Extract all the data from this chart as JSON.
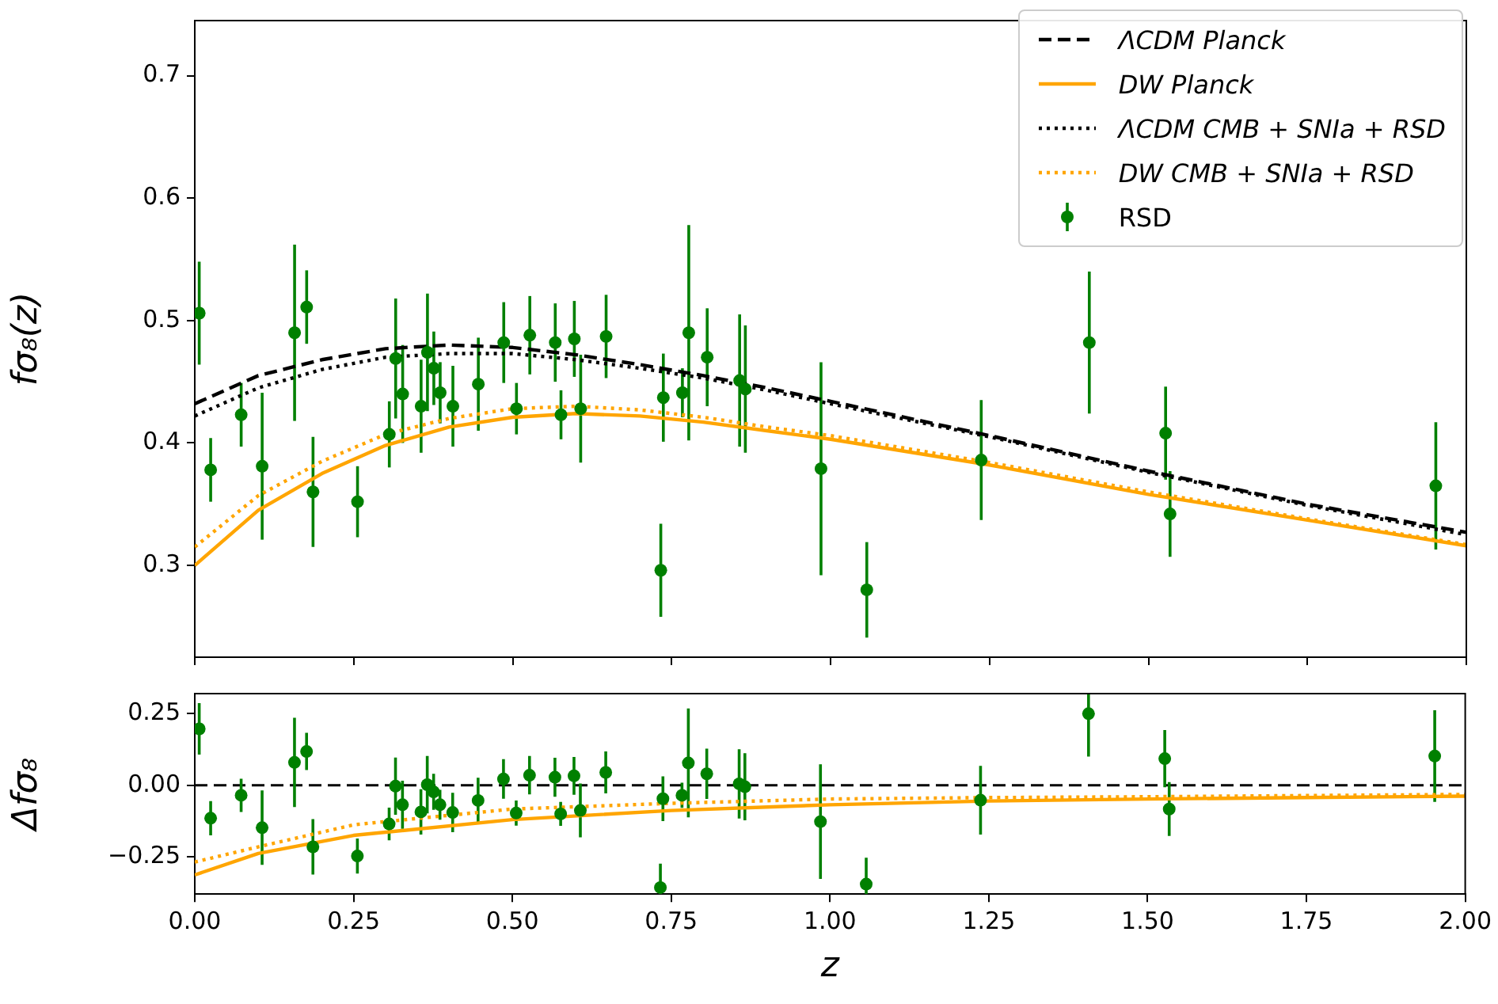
{
  "chart_data": [
    {
      "type": "line",
      "ylabel": "fσ₈(z)",
      "xlim": [
        0,
        2
      ],
      "ylim": [
        0.225,
        0.745
      ],
      "xticks": [
        0,
        0.25,
        0.5,
        0.75,
        1,
        1.25,
        1.5,
        1.75,
        2
      ],
      "yticks": [
        0.3,
        0.4,
        0.5,
        0.6,
        0.7
      ],
      "tick_labels": "y",
      "grid": false,
      "legend": "top right",
      "series": [
        {
          "name": "ΛCDM Planck",
          "color": "#000000",
          "line_style": "dashed",
          "x": [
            0,
            0.1,
            0.2,
            0.3,
            0.4,
            0.5,
            0.6,
            0.7,
            0.8,
            0.9,
            1,
            1.25,
            1.5,
            1.75,
            2
          ],
          "values": [
            0.432,
            0.455,
            0.468,
            0.477,
            0.48,
            0.478,
            0.472,
            0.464,
            0.455,
            0.445,
            0.434,
            0.406,
            0.377,
            0.35,
            0.327
          ]
        },
        {
          "name": "DW Planck",
          "color": "#ffa500",
          "line_style": "solid",
          "x": [
            0,
            0.1,
            0.2,
            0.3,
            0.4,
            0.5,
            0.6,
            0.7,
            0.8,
            0.9,
            1,
            1.25,
            1.5,
            1.75,
            2
          ],
          "values": [
            0.3,
            0.345,
            0.375,
            0.398,
            0.413,
            0.421,
            0.424,
            0.422,
            0.417,
            0.41,
            0.403,
            0.382,
            0.358,
            0.337,
            0.316
          ]
        },
        {
          "name": "ΛCDM CMB + SNIa + RSD",
          "color": "#000000",
          "line_style": "dotted",
          "x": [
            0,
            0.1,
            0.2,
            0.3,
            0.4,
            0.5,
            0.6,
            0.7,
            0.8,
            0.9,
            1,
            1.25,
            1.5,
            1.75,
            2
          ],
          "values": [
            0.422,
            0.445,
            0.46,
            0.47,
            0.473,
            0.473,
            0.468,
            0.461,
            0.453,
            0.443,
            0.432,
            0.405,
            0.376,
            0.349,
            0.325
          ]
        },
        {
          "name": "DW CMB + SNIa + RSD",
          "color": "#ffa500",
          "line_style": "dotted",
          "x": [
            0,
            0.1,
            0.2,
            0.3,
            0.4,
            0.5,
            0.6,
            0.7,
            0.8,
            0.9,
            1,
            1.25,
            1.5,
            1.75,
            2
          ],
          "values": [
            0.315,
            0.357,
            0.385,
            0.407,
            0.42,
            0.428,
            0.43,
            0.427,
            0.421,
            0.413,
            0.406,
            0.384,
            0.36,
            0.338,
            0.317
          ]
        },
        {
          "name": "RSD",
          "type": "scatter",
          "color": "#008000",
          "marker": "circle",
          "x": [
            0.007,
            0.025,
            0.073,
            0.106,
            0.157,
            0.176,
            0.186,
            0.256,
            0.306,
            0.316,
            0.327,
            0.356,
            0.366,
            0.376,
            0.386,
            0.406,
            0.446,
            0.486,
            0.506,
            0.527,
            0.567,
            0.576,
            0.597,
            0.607,
            0.647,
            0.733,
            0.737,
            0.767,
            0.777,
            0.806,
            0.857,
            0.866,
            0.985,
            1.057,
            1.237,
            1.407,
            1.527,
            1.534,
            1.952
          ],
          "values": [
            0.506,
            0.378,
            0.423,
            0.381,
            0.49,
            0.511,
            0.36,
            0.352,
            0.407,
            0.469,
            0.44,
            0.43,
            0.474,
            0.461,
            0.441,
            0.43,
            0.448,
            0.482,
            0.428,
            0.488,
            0.482,
            0.423,
            0.485,
            0.428,
            0.487,
            0.296,
            0.437,
            0.441,
            0.49,
            0.47,
            0.451,
            0.444,
            0.379,
            0.28,
            0.386,
            0.482,
            0.408,
            0.342,
            0.365
          ],
          "errors": [
            0.042,
            0.026,
            0.026,
            0.06,
            0.072,
            0.03,
            0.045,
            0.029,
            0.027,
            0.049,
            0.04,
            0.038,
            0.048,
            0.03,
            0.025,
            0.033,
            0.038,
            0.033,
            0.021,
            0.032,
            0.032,
            0.02,
            0.031,
            0.044,
            0.034,
            0.038,
            0.036,
            0.02,
            0.088,
            0.04,
            0.054,
            0.052,
            0.087,
            0.039,
            0.049,
            0.058,
            0.038,
            0.035,
            0.052
          ]
        }
      ]
    },
    {
      "type": "line",
      "xlabel": "z",
      "ylabel": "Δfσ₈",
      "xlim": [
        0,
        2
      ],
      "ylim": [
        -0.38,
        0.32
      ],
      "xticks": [
        {
          "value": 0,
          "label": "0.00"
        },
        {
          "value": 0.25,
          "label": "0.25"
        },
        {
          "value": 0.5,
          "label": "0.50"
        },
        {
          "value": 0.75,
          "label": "0.75"
        },
        {
          "value": 1,
          "label": "1.00"
        },
        {
          "value": 1.25,
          "label": "1.25"
        },
        {
          "value": 1.5,
          "label": "1.50"
        },
        {
          "value": 1.75,
          "label": "1.75"
        },
        {
          "value": 2,
          "label": "2.00"
        }
      ],
      "yticks": [
        {
          "value": -0.25,
          "label": "−0.25"
        },
        {
          "value": 0,
          "label": "0.00"
        },
        {
          "value": 0.25,
          "label": "0.25"
        }
      ],
      "grid": false,
      "ref_lines": [
        {
          "axis": "y",
          "value": 0,
          "color": "#000000",
          "line_style": "dashed"
        }
      ],
      "series": [
        {
          "color": "#ffa500",
          "line_style": "solid",
          "x": [
            0,
            0.1,
            0.25,
            0.5,
            0.75,
            1,
            1.25,
            1.5,
            1.75,
            2
          ],
          "values": [
            -0.313,
            -0.238,
            -0.175,
            -0.12,
            -0.088,
            -0.068,
            -0.055,
            -0.048,
            -0.043,
            -0.038
          ]
        },
        {
          "color": "#ffa500",
          "line_style": "dotted",
          "x": [
            0,
            0.1,
            0.25,
            0.5,
            0.75,
            1,
            1.25,
            1.5,
            1.75,
            2
          ],
          "values": [
            -0.268,
            -0.215,
            -0.138,
            -0.083,
            -0.063,
            -0.048,
            -0.043,
            -0.04,
            -0.036,
            -0.032
          ]
        },
        {
          "type": "scatter",
          "color": "#008000",
          "marker": "circle",
          "x": [
            0.007,
            0.025,
            0.073,
            0.106,
            0.157,
            0.176,
            0.186,
            0.256,
            0.306,
            0.316,
            0.327,
            0.356,
            0.366,
            0.376,
            0.386,
            0.406,
            0.446,
            0.486,
            0.506,
            0.527,
            0.567,
            0.576,
            0.597,
            0.607,
            0.647,
            0.733,
            0.737,
            0.767,
            0.777,
            0.806,
            0.857,
            0.866,
            0.985,
            1.057,
            1.237,
            1.407,
            1.527,
            1.534,
            1.952
          ],
          "values": [
            0.197,
            -0.115,
            -0.035,
            -0.148,
            0.08,
            0.118,
            -0.215,
            -0.247,
            -0.135,
            -0.003,
            -0.068,
            -0.093,
            0.002,
            -0.023,
            -0.068,
            -0.095,
            -0.053,
            0.022,
            -0.097,
            0.035,
            0.028,
            -0.1,
            0.033,
            -0.088,
            0.045,
            -0.357,
            -0.047,
            -0.035,
            0.078,
            0.04,
            0.005,
            -0.005,
            -0.127,
            -0.345,
            -0.052,
            0.25,
            0.093,
            -0.083,
            0.102
          ],
          "errors": [
            0.09,
            0.06,
            0.058,
            0.13,
            0.156,
            0.065,
            0.097,
            0.061,
            0.057,
            0.1,
            0.084,
            0.079,
            0.1,
            0.063,
            0.052,
            0.069,
            0.079,
            0.069,
            0.044,
            0.067,
            0.068,
            0.042,
            0.066,
            0.094,
            0.073,
            [
              -0.38,
              -0.274
            ],
            0.078,
            0.044,
            0.19,
            0.088,
            0.121,
            0.117,
            0.2,
            [
              -0.38,
              -0.253
            ],
            0.12,
            [
              0.1,
              0.32
            ],
            0.1,
            0.094,
            0.16
          ]
        }
      ]
    }
  ]
}
